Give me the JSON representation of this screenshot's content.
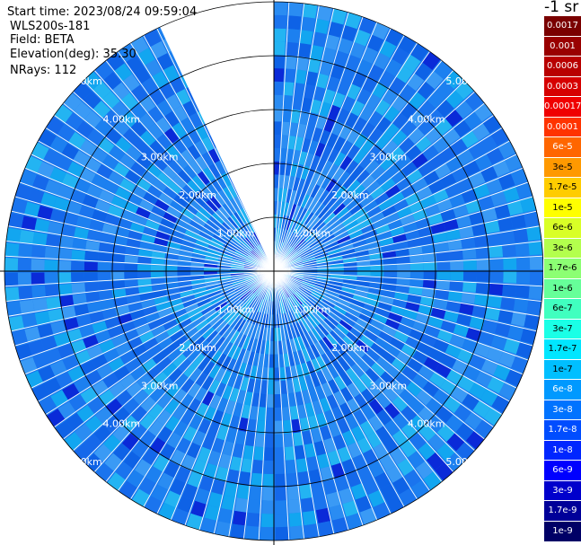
{
  "header": {
    "start_time": "Start time: 2023/08/24 09:59:04",
    "instrument": "WLS200s-181",
    "field": "Field: BETA",
    "elevation": "Elevation(deg): 35.30",
    "nrays": "NRays: 112"
  },
  "colorbar": {
    "unit": "-1 sr",
    "labels": [
      "0.0017",
      "0.001",
      "0.0006",
      "0.0003",
      "0.00017",
      "0.0001",
      "6e-5",
      "3e-5",
      "1.7e-5",
      "1e-5",
      "6e-6",
      "3e-6",
      "1.7e-6",
      "1e-6",
      "6e-7",
      "3e-7",
      "1.7e-7",
      "1e-7",
      "6e-8",
      "3e-8",
      "1.7e-8",
      "1e-8",
      "6e-9",
      "3e-9",
      "1.7e-9",
      "1e-9"
    ],
    "colors": [
      "#7a0000",
      "#990000",
      "#b80000",
      "#d60000",
      "#f00000",
      "#ff3300",
      "#ff6600",
      "#ff9900",
      "#ffcc00",
      "#ffff00",
      "#d9ff26",
      "#b3ff4d",
      "#8cff73",
      "#66ff99",
      "#40ffbf",
      "#1affe6",
      "#00e6ff",
      "#00bfff",
      "#0099ff",
      "#0073ff",
      "#004dff",
      "#0026ff",
      "#0000ff",
      "#0000cc",
      "#000099",
      "#000066"
    ]
  },
  "range_labels": [
    "1.00km",
    "2.00km",
    "3.00km",
    "4.00km",
    "5.00km"
  ],
  "sector": {
    "missing_start_deg": 335,
    "missing_end_deg": 360,
    "rays": 112
  },
  "palette": {
    "ring_dark": "#000000",
    "beam_gap": "#ffffff",
    "field_low": "#1a74ee",
    "field_mid": "#2a8cf2",
    "field_hi": "#12a6f0"
  }
}
